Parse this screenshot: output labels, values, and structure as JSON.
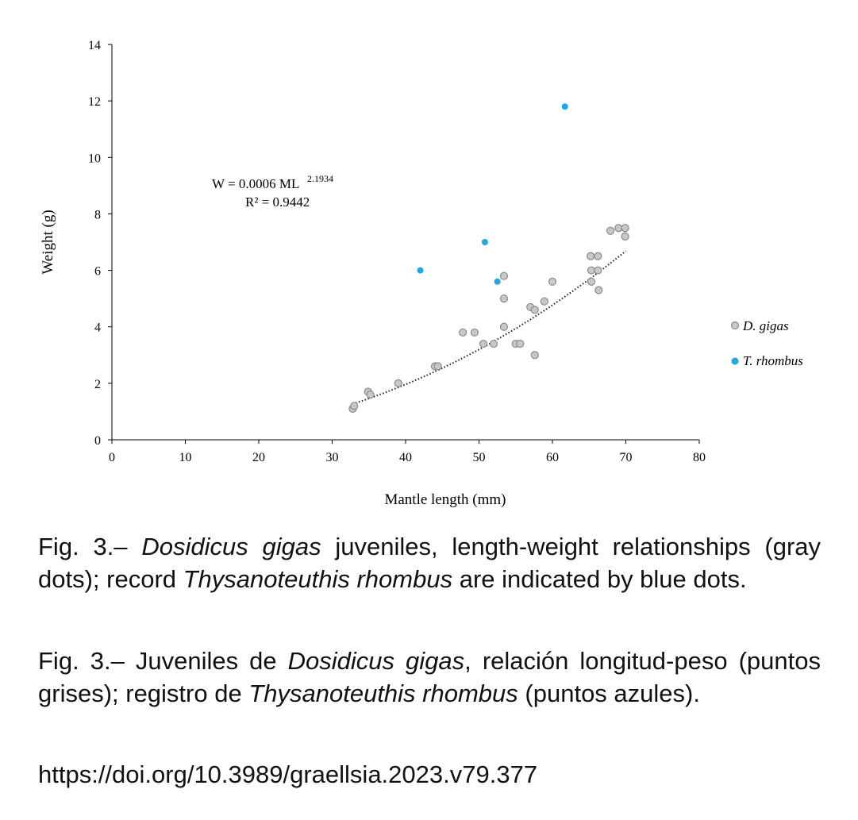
{
  "chart_data": {
    "type": "scatter",
    "xlabel": "Mantle length (mm)",
    "ylabel": "Weight (g)",
    "xlim": [
      0,
      80
    ],
    "ylim": [
      0,
      14
    ],
    "xticks": [
      "0",
      "10",
      "20",
      "30",
      "40",
      "50",
      "60",
      "70",
      "80"
    ],
    "yticks": [
      "0",
      "2",
      "4",
      "6",
      "8",
      "10",
      "12",
      "14"
    ],
    "grid": false,
    "legend_position": "right",
    "series": [
      {
        "name": "D. gigas",
        "color": "#c8c8c8",
        "points": [
          [
            32.8,
            1.1
          ],
          [
            33.0,
            1.2
          ],
          [
            34.9,
            1.7
          ],
          [
            35.2,
            1.6
          ],
          [
            39.0,
            2.0
          ],
          [
            44.0,
            2.6
          ],
          [
            44.4,
            2.6
          ],
          [
            47.8,
            3.8
          ],
          [
            49.4,
            3.8
          ],
          [
            50.6,
            3.4
          ],
          [
            52.0,
            3.4
          ],
          [
            53.4,
            4.0
          ],
          [
            53.4,
            5.0
          ],
          [
            53.4,
            5.8
          ],
          [
            55.0,
            3.4
          ],
          [
            55.6,
            3.4
          ],
          [
            57.0,
            4.7
          ],
          [
            57.6,
            4.6
          ],
          [
            57.6,
            3.0
          ],
          [
            58.9,
            4.9
          ],
          [
            60.0,
            5.6
          ],
          [
            65.2,
            6.5
          ],
          [
            65.3,
            6.0
          ],
          [
            65.3,
            5.6
          ],
          [
            66.2,
            6.5
          ],
          [
            66.2,
            6.0
          ],
          [
            66.3,
            5.3
          ],
          [
            67.9,
            7.4
          ],
          [
            69.0,
            7.5
          ],
          [
            69.9,
            7.5
          ],
          [
            69.9,
            7.2
          ]
        ]
      },
      {
        "name": "T. rhombus",
        "color": "#1ea8e6",
        "points": [
          [
            42.0,
            6.0
          ],
          [
            50.8,
            7.0
          ],
          [
            52.5,
            5.6
          ],
          [
            61.7,
            11.8
          ]
        ]
      }
    ],
    "trendline": {
      "type": "power",
      "a": 0.0006,
      "b": 2.1934,
      "x_range": [
        32.8,
        70.0
      ],
      "style": "dotted",
      "equation_text": "W = 0.0006 ML",
      "equation_exponent": "2.1934",
      "r2_text": "R² = 0.9442"
    }
  },
  "caption_en": {
    "prefix": "Fig. 3.– ",
    "species1": "Dosidicus gigas",
    "middle": " juveniles, length-weight relationships (gray dots); record ",
    "species2": "Thysanoteuthis rhombus",
    "suffix": " are indicated by blue dots."
  },
  "caption_es": {
    "prefix": "Fig. 3.– Juveniles de ",
    "species1": "Dosidicus gigas",
    "middle": ", relación longitud-peso (puntos grises); registro de ",
    "species2": "Thysanoteuthis rhombus",
    "suffix": " (puntos azules)."
  },
  "doi": "https://doi.org/10.3989/graellsia.2023.v79.377"
}
